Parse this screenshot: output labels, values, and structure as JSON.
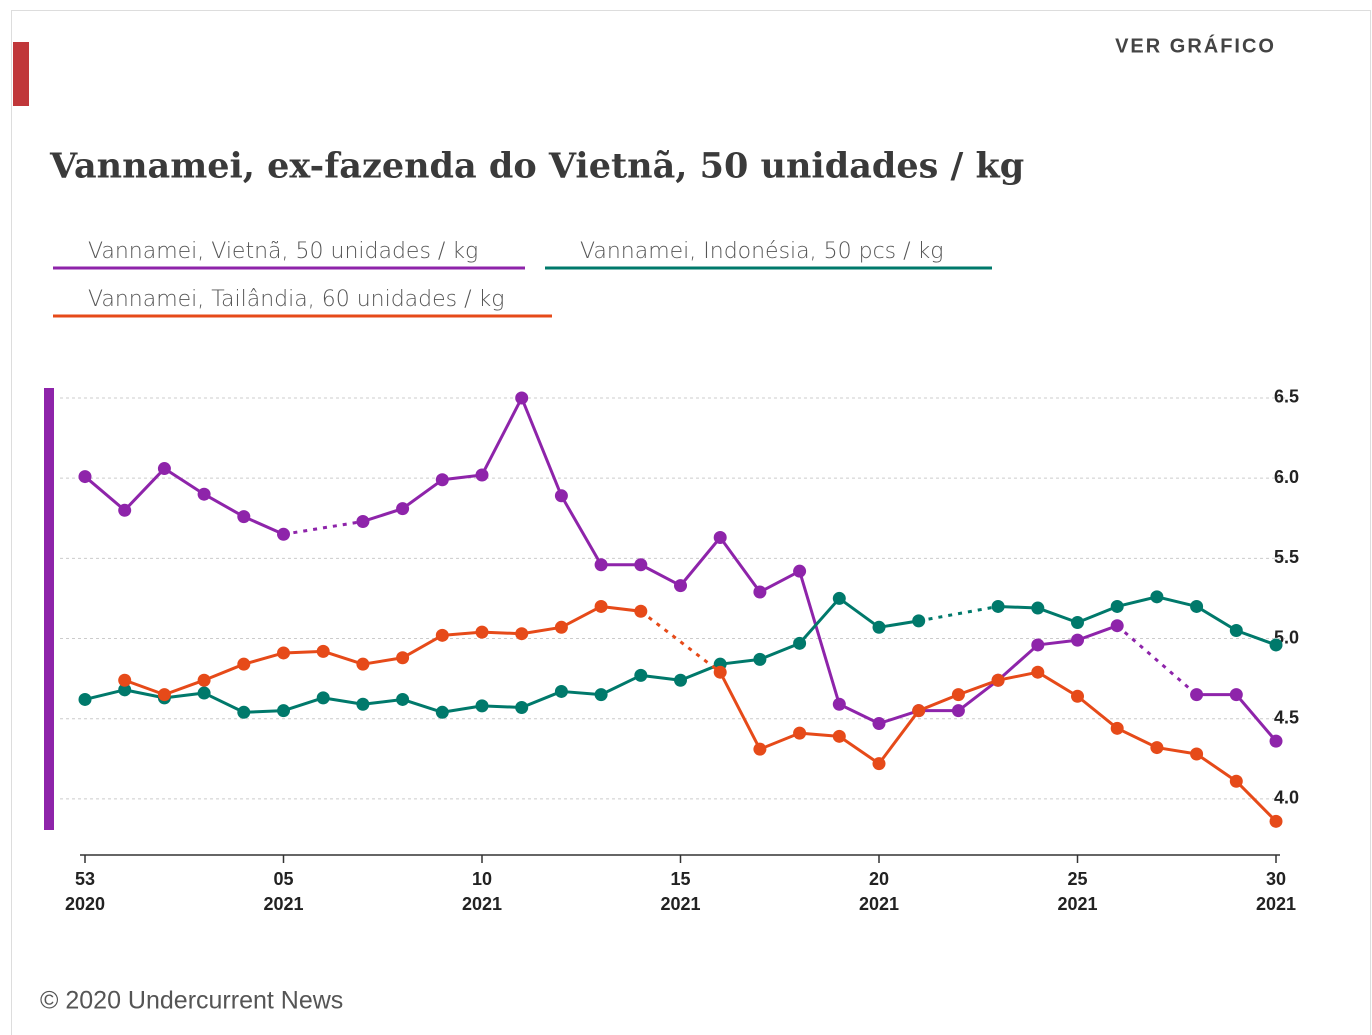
{
  "header": {
    "button": "VER GRÁFICO"
  },
  "chart_data": {
    "type": "line",
    "title": "Vannamei, ex-fazenda do Vietnã, 50 unidades / kg",
    "categories": [
      "53",
      null,
      null,
      null,
      null,
      "05",
      null,
      null,
      null,
      null,
      "10",
      null,
      null,
      null,
      null,
      "15",
      null,
      null,
      null,
      null,
      "20",
      null,
      null,
      null,
      null,
      "25",
      null,
      null,
      null,
      null,
      "30"
    ],
    "category_years": [
      "2020",
      null,
      null,
      null,
      null,
      "2021",
      null,
      null,
      null,
      null,
      "2021",
      null,
      null,
      null,
      null,
      "2021",
      null,
      null,
      null,
      null,
      "2021",
      null,
      null,
      null,
      null,
      "2021",
      null,
      null,
      null,
      null,
      "2021"
    ],
    "series": [
      {
        "name": "Vannamei, Vietnã, 50 unidades / kg",
        "color": "#8e24aa",
        "values": [
          6.01,
          5.8,
          6.06,
          5.9,
          5.76,
          5.65,
          null,
          5.73,
          5.81,
          5.99,
          6.02,
          6.5,
          5.89,
          5.46,
          5.46,
          5.33,
          5.63,
          5.29,
          5.42,
          4.59,
          4.47,
          4.55,
          4.55,
          4.74,
          4.96,
          4.99,
          5.08,
          null,
          4.65,
          4.65,
          4.36
        ]
      },
      {
        "name": "Vannamei, Indonésia, 50 pcs / kg",
        "color": "#00796b",
        "values": [
          4.62,
          4.68,
          4.63,
          4.66,
          4.54,
          4.55,
          4.63,
          4.59,
          4.62,
          4.54,
          4.58,
          4.57,
          4.67,
          4.65,
          4.77,
          4.74,
          4.84,
          4.87,
          4.97,
          5.25,
          5.07,
          5.11,
          null,
          5.2,
          5.19,
          5.1,
          5.2,
          5.26,
          5.2,
          5.05,
          4.96
        ]
      },
      {
        "name": "Vannamei, Tailândia, 60 unidades / kg",
        "color": "#e64a19",
        "values": [
          null,
          4.74,
          4.65,
          4.74,
          4.84,
          4.91,
          4.92,
          4.84,
          4.88,
          5.02,
          5.04,
          5.03,
          5.07,
          5.2,
          5.17,
          null,
          4.79,
          4.31,
          4.41,
          4.39,
          4.22,
          4.55,
          4.65,
          4.74,
          4.79,
          4.64,
          4.44,
          4.32,
          4.28,
          4.11,
          3.86
        ]
      }
    ],
    "ylim": [
      3.65,
      6.55
    ],
    "yticks": [
      {
        "value": 4,
        "label": "4.0"
      },
      4.5,
      {
        "value": 5,
        "label": "5.0"
      },
      5.5,
      {
        "value": 6,
        "label": "6.0"
      },
      6.5
    ],
    "grid": true
  },
  "footer": {
    "text": "© 2020 Undercurrent News"
  }
}
